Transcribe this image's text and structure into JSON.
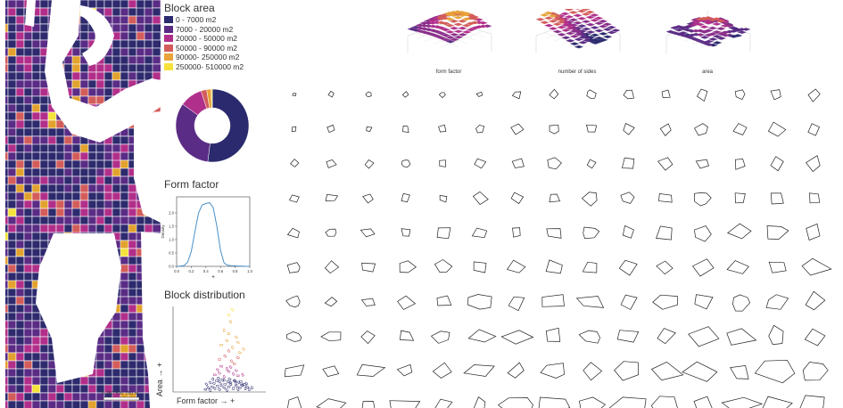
{
  "map": {
    "scale_label": "0  250  500  750 m",
    "colors": [
      "#2e2a6e",
      "#5a2c85",
      "#b12f8a",
      "#d35d5a",
      "#e2a22e",
      "#f5e23a"
    ]
  },
  "legend": {
    "title": "Block area",
    "items": [
      {
        "label": "0 - 7000 m2",
        "color": "#2b2a6e"
      },
      {
        "label": "7000 - 20000 m2",
        "color": "#5b2c85"
      },
      {
        "label": "20000 - 50000 m2",
        "color": "#b02f8b"
      },
      {
        "label": "50000 - 90000 m2",
        "color": "#d35c5a"
      },
      {
        "label": "90000- 250000 m2",
        "color": "#e8a33a"
      },
      {
        "label": "250000- 510000 m2",
        "color": "#f6e03c"
      }
    ]
  },
  "form_factor": {
    "title": "Form factor",
    "xlabel": "+",
    "ylabel": "Density"
  },
  "block_distribution": {
    "title": "Block distribution",
    "xlabel": "Form factor → +",
    "ylabel": "Area → +"
  },
  "surfaces": [
    {
      "label": "form factor"
    },
    {
      "label": "number of sides"
    },
    {
      "label": "area"
    }
  ],
  "chart_data": [
    {
      "type": "pie",
      "labels": [
        "0 - 7000 m2",
        "7000 - 20000 m2",
        "20000 - 50000 m2",
        "50000 - 90000 m2",
        "90000- 250000 m2",
        "250000- 510000 m2"
      ],
      "values": [
        52,
        33,
        10,
        2.5,
        2,
        0.5
      ],
      "colors": [
        "#2b2a6e",
        "#5b2c85",
        "#b02f8b",
        "#d35c5a",
        "#e8a33a",
        "#f6e03c"
      ]
    },
    {
      "type": "line",
      "x": [
        0.0,
        0.05,
        0.1,
        0.15,
        0.2,
        0.25,
        0.3,
        0.35,
        0.4,
        0.45,
        0.5,
        0.55,
        0.6,
        0.65,
        0.7,
        0.75,
        0.8,
        0.85,
        0.9,
        0.95,
        1.0
      ],
      "y": [
        0.0,
        0.01,
        0.03,
        0.15,
        0.55,
        1.3,
        2.0,
        2.3,
        2.35,
        2.38,
        2.2,
        1.5,
        0.6,
        0.12,
        0.04,
        0.02,
        0.02,
        0.01,
        0.01,
        0.0,
        0.0
      ],
      "xlim": [
        0,
        1
      ],
      "ylim": [
        0,
        2.6
      ],
      "xticks": [
        "0.0",
        "0.2",
        "0.4",
        "0.6",
        "0.8",
        "1.0"
      ],
      "yticks": [
        "0.0",
        "0.5",
        "1.0",
        "1.5",
        "2.0"
      ],
      "color": "#4a90c8"
    },
    {
      "type": "scatter",
      "x_range": [
        0,
        1
      ],
      "y_range": [
        0,
        1
      ],
      "series": [
        {
          "color": "#2b2a6e",
          "x": [
            0.35,
            0.38,
            0.4,
            0.42,
            0.45,
            0.48,
            0.5,
            0.52,
            0.55,
            0.58,
            0.6,
            0.62,
            0.65,
            0.68,
            0.7,
            0.72,
            0.75,
            0.78,
            0.8,
            0.82,
            0.44,
            0.5,
            0.56,
            0.62,
            0.68,
            0.74,
            0.4,
            0.47,
            0.53,
            0.59,
            0.66,
            0.71,
            0.77,
            0.36,
            0.43,
            0.49,
            0.55,
            0.61,
            0.67,
            0.73,
            0.79,
            0.85
          ],
          "y": [
            0.03,
            0.05,
            0.02,
            0.06,
            0.04,
            0.07,
            0.03,
            0.08,
            0.05,
            0.02,
            0.06,
            0.09,
            0.04,
            0.07,
            0.03,
            0.05,
            0.08,
            0.04,
            0.06,
            0.03,
            0.1,
            0.12,
            0.09,
            0.11,
            0.1,
            0.08,
            0.11,
            0.13,
            0.14,
            0.12,
            0.13,
            0.11,
            0.09,
            0.09,
            0.15,
            0.16,
            0.14,
            0.15,
            0.13,
            0.12,
            0.1,
            0.05
          ]
        },
        {
          "color": "#b02f8b",
          "x": [
            0.45,
            0.5,
            0.55,
            0.6,
            0.65,
            0.7,
            0.48,
            0.58,
            0.68,
            0.75,
            0.52,
            0.62
          ],
          "y": [
            0.2,
            0.22,
            0.18,
            0.24,
            0.21,
            0.19,
            0.26,
            0.27,
            0.25,
            0.2,
            0.3,
            0.29
          ]
        },
        {
          "color": "#d35c5a",
          "x": [
            0.5,
            0.56,
            0.63,
            0.7,
            0.6,
            0.66
          ],
          "y": [
            0.38,
            0.42,
            0.36,
            0.4,
            0.48,
            0.33
          ]
        },
        {
          "color": "#e8a33a",
          "x": [
            0.52,
            0.58,
            0.64,
            0.7,
            0.76,
            0.6,
            0.68,
            0.55,
            0.72,
            0.62
          ],
          "y": [
            0.55,
            0.6,
            0.52,
            0.58,
            0.5,
            0.68,
            0.64,
            0.72,
            0.46,
            0.82
          ]
        },
        {
          "color": "#f6e03c",
          "x": [
            0.6,
            0.64
          ],
          "y": [
            0.9,
            0.96
          ]
        }
      ]
    }
  ]
}
